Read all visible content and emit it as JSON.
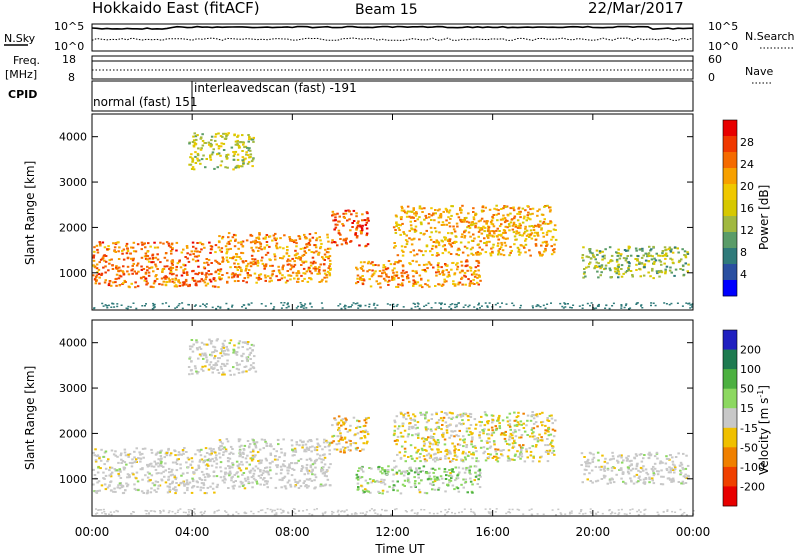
{
  "header": {
    "title": "Hokkaido East (fitACF)",
    "beam": "Beam 15",
    "date": "22/Mar/2017"
  },
  "strip": {
    "nsky_label": "N.Sky",
    "nsky_ticks": [
      "10^5",
      "10^0"
    ],
    "nsearch_label": "N.Search",
    "nsearch_ticks": [
      "10^5",
      "10^0"
    ],
    "freq_label_1": "Freq.",
    "freq_label_2": "[MHz]",
    "freq_ticks": [
      "18",
      "8"
    ],
    "nave_label": "Nave",
    "nave_ticks": [
      "60",
      "0"
    ],
    "cpid_label": "CPID",
    "cpid_events": [
      {
        "text": "normal (fast) 151",
        "time_h": 0.0
      },
      {
        "text": "interleavedscan (fast) -191",
        "time_h": 4.0
      }
    ]
  },
  "panels": {
    "power": {
      "ylabel": "Slant Range [km]",
      "cbar_label": "Power [dB]",
      "cbar_ticks": [
        "28",
        "24",
        "20",
        "16",
        "12",
        "8",
        "4"
      ]
    },
    "velocity": {
      "ylabel": "Slant Range [km]",
      "cbar_label": "Velocity [m s",
      "cbar_sup": "-1",
      "cbar_label_end": "]",
      "cbar_ticks": [
        "200",
        "100",
        "50",
        "15",
        "-15",
        "-50",
        "-100",
        "-200"
      ]
    }
  },
  "colors": {
    "power_scale": [
      "#e80000",
      "#f03800",
      "#f56a00",
      "#f7a000",
      "#f0c800",
      "#d6c800",
      "#a0b840",
      "#5a9c68",
      "#2f7a7a",
      "#2a4fa0",
      "#0000ff"
    ],
    "velocity_scale": [
      "#2020c0",
      "#1e7a50",
      "#4cb040",
      "#8cd860",
      "#c8c8c8",
      "#f0c000",
      "#f08000",
      "#f04000",
      "#e80000"
    ]
  },
  "chart_data": {
    "type": "heatmap",
    "xlabel": "Time UT",
    "x_ticks": [
      "00:00",
      "04:00",
      "08:00",
      "12:00",
      "16:00",
      "20:00",
      "00:00"
    ],
    "x_range_hours": [
      0,
      24
    ],
    "y_ticks": [
      1000,
      2000,
      3000,
      4000
    ],
    "y_range_km": [
      180,
      4500
    ],
    "power_range_db": [
      0,
      30
    ],
    "velocity_range_ms": [
      -200,
      200
    ],
    "echo_regions": [
      {
        "t0": 0.0,
        "t1": 5.0,
        "r0": 700,
        "r1": 1700,
        "power": 24,
        "velocity": 0
      },
      {
        "t0": 5.0,
        "t1": 9.5,
        "r0": 800,
        "r1": 1900,
        "power": 22,
        "velocity": 0
      },
      {
        "t0": 9.5,
        "t1": 11.0,
        "r0": 1600,
        "r1": 2400,
        "power": 26,
        "velocity": -40
      },
      {
        "t0": 10.5,
        "t1": 15.5,
        "r0": 700,
        "r1": 1300,
        "power": 22,
        "velocity": 40
      },
      {
        "t0": 12.0,
        "t1": 18.5,
        "r0": 1400,
        "r1": 2500,
        "power": 20,
        "velocity": -15
      },
      {
        "t0": 3.8,
        "t1": 6.5,
        "r0": 3300,
        "r1": 4100,
        "power": 14,
        "velocity": 0
      },
      {
        "t0": 19.5,
        "t1": 23.8,
        "r0": 900,
        "r1": 1600,
        "power": 12,
        "velocity": 0
      }
    ]
  }
}
